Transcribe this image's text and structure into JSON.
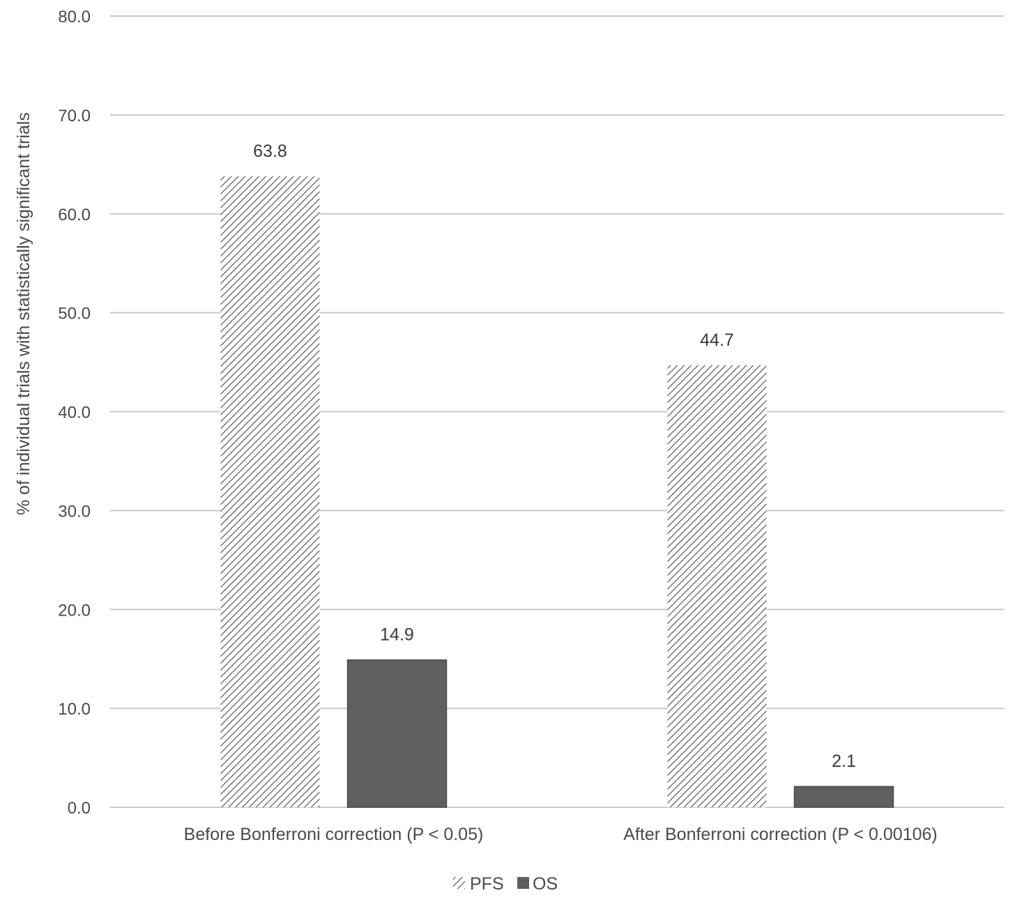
{
  "chart_data": {
    "type": "bar",
    "title": "",
    "xlabel": "",
    "ylabel": "% of individual trials with statistically significant trials",
    "ylim": [
      0,
      80
    ],
    "yticks": [
      "0.0",
      "10.0",
      "20.0",
      "30.0",
      "40.0",
      "50.0",
      "60.0",
      "70.0",
      "80.0"
    ],
    "grid": true,
    "legend_position": "bottom",
    "categories": [
      "Before Bonferroni correction (P < 0.05)",
      "After Bonferroni correction (P < 0.00106)"
    ],
    "series": [
      {
        "name": "PFS",
        "values": [
          63.8,
          44.7
        ],
        "labels": [
          "63.8",
          "44.7"
        ],
        "fill": "diagonal-hatch",
        "color": "#555555"
      },
      {
        "name": "OS",
        "values": [
          14.9,
          2.1
        ],
        "labels": [
          "14.9",
          "2.1"
        ],
        "fill": "solid",
        "color": "#5f5f5f"
      }
    ]
  }
}
